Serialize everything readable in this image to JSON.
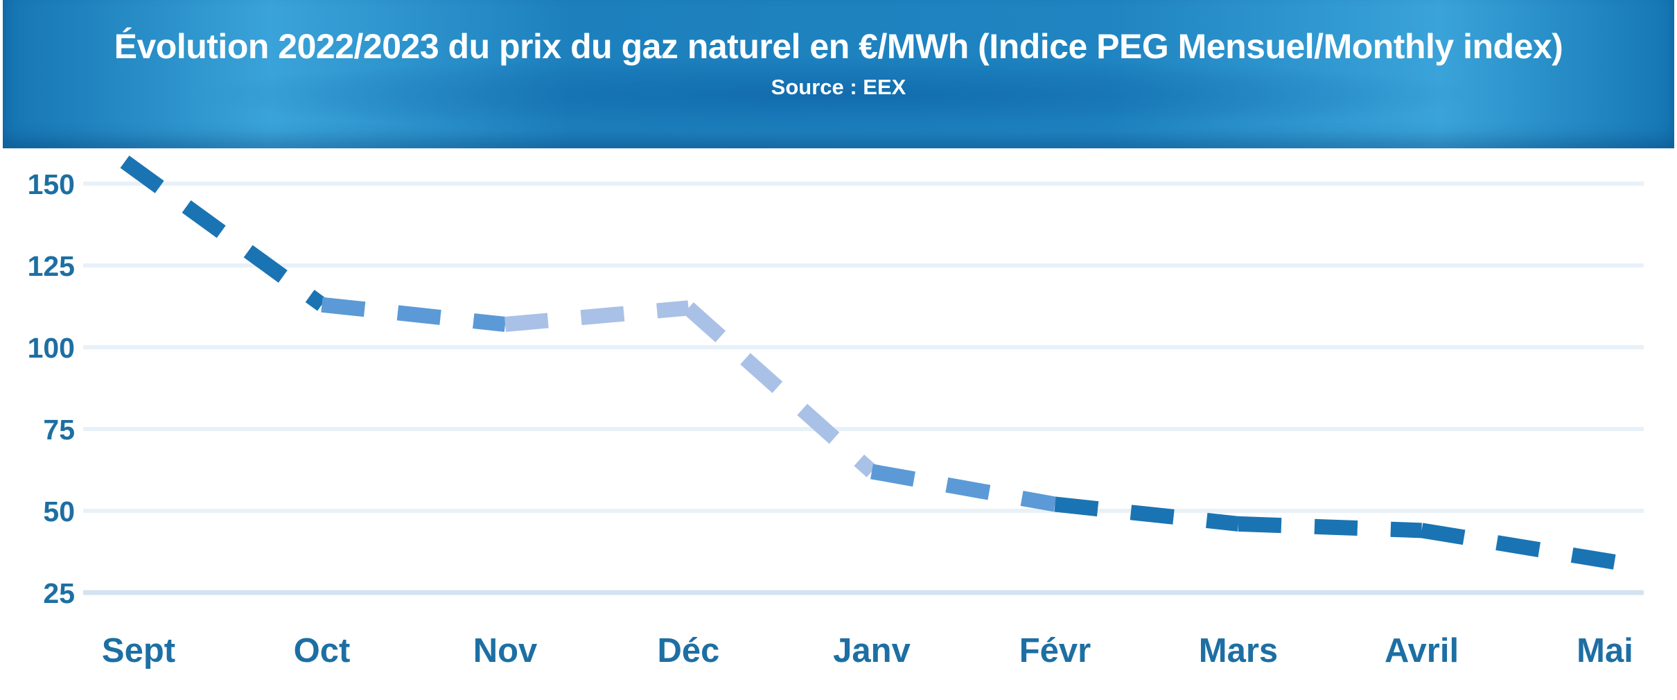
{
  "header": {
    "title": "Évolution 2022/2023 du prix du gaz naturel en €/MWh (Indice PEG Mensuel/Monthly index)",
    "source": "Source :  EEX"
  },
  "colors": {
    "axis_text": "#1d6fa3",
    "line_dark": "#1a74b3",
    "line_mid": "#5b9ad6",
    "line_light": "#a9c1e6",
    "grid": "#e8f1f8"
  },
  "chart_data": {
    "type": "line",
    "title": "Évolution 2022/2023 du prix du gaz naturel en €/MWh (Indice PEG Mensuel/Monthly index)",
    "subtitle": "Source :  EEX",
    "categories": [
      "Sept",
      "Oct",
      "Nov",
      "Déc",
      "Janv",
      "Févr",
      "Mars",
      "Avril",
      "Mai"
    ],
    "series": [
      {
        "name": "Indice PEG Mensuel",
        "values": [
          155,
          113,
          107,
          112,
          62,
          52,
          46,
          44,
          34
        ]
      }
    ],
    "yticks": [
      150,
      125,
      100,
      75,
      50,
      25
    ],
    "ylim": [
      25,
      155
    ],
    "xlabel": "",
    "ylabel": "€/MWh",
    "grid": true,
    "legend": "none",
    "line_style": "dashed"
  }
}
